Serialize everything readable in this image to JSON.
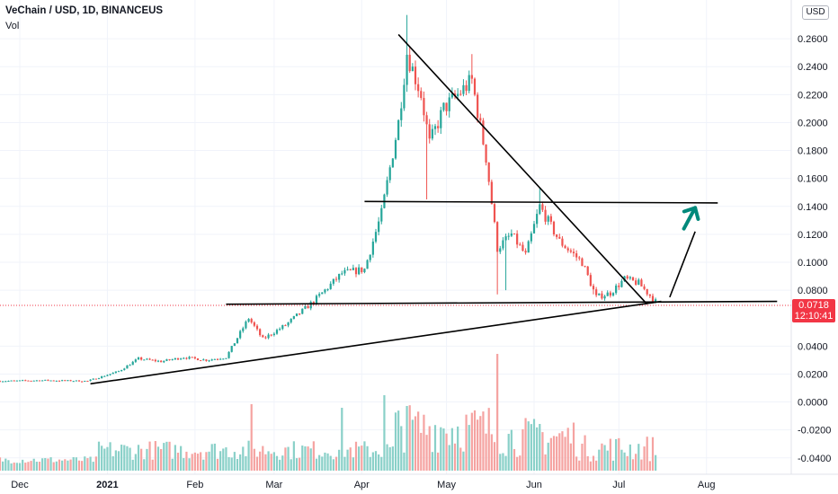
{
  "header": {
    "symbol_title": "VeChain / USD, 1D, BINANCEUS",
    "volume_label": "Vol",
    "currency": "USD"
  },
  "price_tag": {
    "price": "0.0718",
    "countdown": "12:10:41",
    "color": "#f23645"
  },
  "colors": {
    "up": "#26a69a",
    "down": "#ef5350",
    "volume_up": "#89d0c8",
    "volume_down": "#f5a3a1",
    "grid": "#f0f3fa",
    "arrow": "#00897b",
    "drawing": "#000000"
  },
  "chart_data": {
    "type": "candlestick",
    "title": "VeChain / USD, 1D, BINANCEUS",
    "y_ticks": [
      "0.2600",
      "0.2400",
      "0.2200",
      "0.2000",
      "0.1800",
      "0.1600",
      "0.1400",
      "0.1200",
      "0.1000",
      "0.0800",
      "0.0400",
      "0.0200",
      "0.0000",
      "-0.0200",
      "-0.0400"
    ],
    "y_tick_values": [
      0.26,
      0.24,
      0.22,
      0.2,
      0.18,
      0.16,
      0.14,
      0.12,
      0.1,
      0.08,
      0.04,
      0.02,
      0.0,
      -0.02,
      -0.04
    ],
    "y_range": [
      -0.044,
      0.28
    ],
    "x_ticks": [
      {
        "label": "Dec",
        "date": "2020-12-01",
        "bold": false
      },
      {
        "label": "2021",
        "date": "2021-01-01",
        "bold": true
      },
      {
        "label": "Feb",
        "date": "2021-02-01",
        "bold": false
      },
      {
        "label": "Mar",
        "date": "2021-03-01",
        "bold": false
      },
      {
        "label": "Apr",
        "date": "2021-04-01",
        "bold": false
      },
      {
        "label": "May",
        "date": "2021-05-01",
        "bold": false
      },
      {
        "label": "Jun",
        "date": "2021-06-01",
        "bold": false
      },
      {
        "label": "Jul",
        "date": "2021-07-01",
        "bold": false
      },
      {
        "label": "Aug",
        "date": "2021-08-01",
        "bold": false
      }
    ],
    "x_range": [
      "2020-11-24",
      "2021-08-31"
    ],
    "last_price": 0.0718,
    "price_path": [
      {
        "date": "2020-11-24",
        "close": 0.015
      },
      {
        "date": "2020-12-10",
        "close": 0.0155
      },
      {
        "date": "2020-12-25",
        "close": 0.015
      },
      {
        "date": "2021-01-05",
        "close": 0.022
      },
      {
        "date": "2021-01-12",
        "close": 0.031
      },
      {
        "date": "2021-01-20",
        "close": 0.029
      },
      {
        "date": "2021-01-28",
        "close": 0.032
      },
      {
        "date": "2021-02-05",
        "close": 0.03
      },
      {
        "date": "2021-02-12",
        "close": 0.032
      },
      {
        "date": "2021-02-20",
        "close": 0.06
      },
      {
        "date": "2021-02-25",
        "close": 0.045
      },
      {
        "date": "2021-03-05",
        "close": 0.055
      },
      {
        "date": "2021-03-15",
        "close": 0.072
      },
      {
        "date": "2021-03-25",
        "close": 0.092
      },
      {
        "date": "2021-04-02",
        "close": 0.095
      },
      {
        "date": "2021-04-08",
        "close": 0.135
      },
      {
        "date": "2021-04-14",
        "close": 0.2
      },
      {
        "date": "2021-04-17",
        "close": 0.25
      },
      {
        "date": "2021-04-22",
        "close": 0.22
      },
      {
        "date": "2021-04-25",
        "close": 0.185
      },
      {
        "date": "2021-04-30",
        "close": 0.21
      },
      {
        "date": "2021-05-05",
        "close": 0.22
      },
      {
        "date": "2021-05-10",
        "close": 0.23
      },
      {
        "date": "2021-05-15",
        "close": 0.175
      },
      {
        "date": "2021-05-19",
        "close": 0.11
      },
      {
        "date": "2021-05-24",
        "close": 0.12
      },
      {
        "date": "2021-05-29",
        "close": 0.105
      },
      {
        "date": "2021-06-03",
        "close": 0.14
      },
      {
        "date": "2021-06-10",
        "close": 0.115
      },
      {
        "date": "2021-06-18",
        "close": 0.1
      },
      {
        "date": "2021-06-23",
        "close": 0.075
      },
      {
        "date": "2021-06-28",
        "close": 0.078
      },
      {
        "date": "2021-07-03",
        "close": 0.088
      },
      {
        "date": "2021-07-08",
        "close": 0.085
      },
      {
        "date": "2021-07-14",
        "close": 0.0718
      }
    ],
    "drawings": [
      {
        "type": "trendline",
        "name": "ascending-support-line",
        "points": [
          {
            "date": "2020-12-26",
            "price": 0.013
          },
          {
            "date": "2021-07-16",
            "price": 0.072
          }
        ]
      },
      {
        "type": "trendline",
        "name": "horizontal-support-line",
        "points": [
          {
            "date": "2021-02-12",
            "price": 0.07
          },
          {
            "date": "2021-08-26",
            "price": 0.072
          }
        ]
      },
      {
        "type": "trendline",
        "name": "horizontal-resistance-line",
        "points": [
          {
            "date": "2021-04-02",
            "price": 0.1435
          },
          {
            "date": "2021-08-05",
            "price": 0.1425
          }
        ]
      },
      {
        "type": "trendline",
        "name": "descending-resistance-line",
        "points": [
          {
            "date": "2021-04-14",
            "price": 0.263
          },
          {
            "date": "2021-07-11",
            "price": 0.07
          }
        ]
      },
      {
        "type": "trendline",
        "name": "projection-line",
        "points": [
          {
            "date": "2021-07-19",
            "price": 0.075
          },
          {
            "date": "2021-07-28",
            "price": 0.122
          }
        ]
      },
      {
        "type": "arrow",
        "name": "projection-arrow",
        "points": [
          {
            "date": "2021-07-24",
            "price": 0.124
          },
          {
            "date": "2021-07-28",
            "price": 0.139
          }
        ]
      }
    ]
  }
}
